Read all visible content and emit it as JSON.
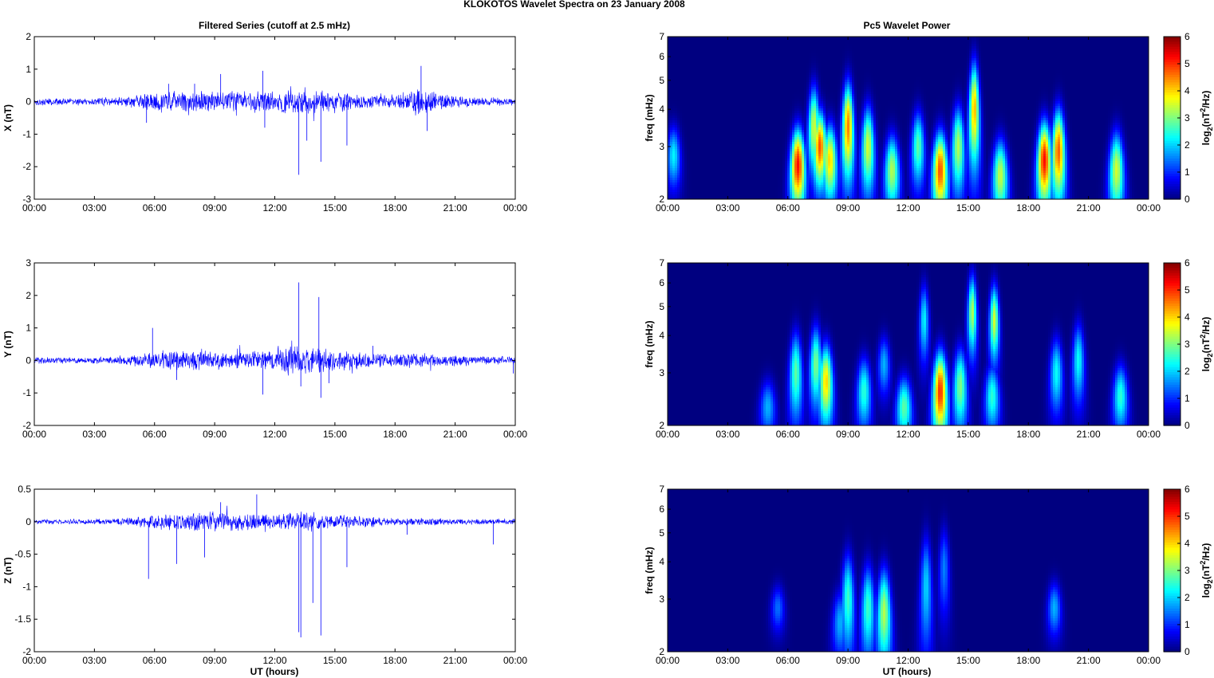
{
  "figure": {
    "title": "KLOKOTOS Wavelet Spectra on 23 January   2008",
    "left_title": "Filtered Series (cutoff at 2.5 mHz)",
    "right_title": "Pc5 Wavelet Power",
    "xlabel": "UT (hours)"
  },
  "time_ticks": [
    "00:00",
    "03:00",
    "06:00",
    "09:00",
    "12:00",
    "15:00",
    "18:00",
    "21:00",
    "00:00"
  ],
  "colors": {
    "series": "#0000ff",
    "background": "#ffffff",
    "axis": "#000000"
  },
  "chart_data": [
    {
      "type": "line",
      "name": "X series",
      "ylabel": "X (nT)",
      "xlim": [
        0,
        24
      ],
      "ylim": [
        -3,
        2
      ],
      "yticks": [
        "2",
        "1",
        "0",
        "-1",
        "-2",
        "-3"
      ],
      "ytick_values": [
        2,
        1,
        0,
        -1,
        -2,
        -3
      ],
      "envelope": {
        "hours": [
          0,
          2,
          4,
          5,
          6,
          7,
          8,
          9,
          10,
          11,
          12,
          13,
          14,
          15,
          16,
          17,
          18,
          19,
          20,
          21,
          22,
          24
        ],
        "amplitude": [
          0.12,
          0.12,
          0.15,
          0.22,
          0.35,
          0.4,
          0.35,
          0.35,
          0.35,
          0.4,
          0.35,
          0.45,
          0.4,
          0.35,
          0.3,
          0.25,
          0.2,
          0.5,
          0.35,
          0.2,
          0.15,
          0.12
        ]
      },
      "spikes": [
        {
          "x": 5.6,
          "y": -0.65
        },
        {
          "x": 6.7,
          "y": 0.55
        },
        {
          "x": 8.0,
          "y": 0.55
        },
        {
          "x": 9.3,
          "y": 0.85
        },
        {
          "x": 11.4,
          "y": 0.95
        },
        {
          "x": 11.5,
          "y": -0.8
        },
        {
          "x": 13.2,
          "y": -2.25
        },
        {
          "x": 13.6,
          "y": -1.2
        },
        {
          "x": 14.3,
          "y": -1.85
        },
        {
          "x": 15.6,
          "y": -1.35
        },
        {
          "x": 19.3,
          "y": 1.1
        },
        {
          "x": 19.6,
          "y": -0.9
        }
      ]
    },
    {
      "type": "line",
      "name": "Y series",
      "ylabel": "Y (nT)",
      "xlim": [
        0,
        24
      ],
      "ylim": [
        -2,
        3
      ],
      "yticks": [
        "3",
        "2",
        "1",
        "0",
        "-1",
        "-2"
      ],
      "ytick_values": [
        3,
        2,
        1,
        0,
        -1,
        -2
      ],
      "envelope": {
        "hours": [
          0,
          2,
          4,
          5,
          6,
          7,
          8,
          9,
          10,
          11,
          12,
          13,
          14,
          15,
          16,
          17,
          18,
          19,
          20,
          21,
          22,
          24
        ],
        "amplitude": [
          0.12,
          0.1,
          0.12,
          0.2,
          0.3,
          0.35,
          0.35,
          0.3,
          0.3,
          0.35,
          0.35,
          0.5,
          0.45,
          0.35,
          0.3,
          0.25,
          0.2,
          0.25,
          0.2,
          0.2,
          0.15,
          0.15
        ]
      },
      "spikes": [
        {
          "x": 5.9,
          "y": 1.0
        },
        {
          "x": 7.1,
          "y": -0.6
        },
        {
          "x": 11.4,
          "y": -1.05
        },
        {
          "x": 13.2,
          "y": 2.4
        },
        {
          "x": 13.3,
          "y": -0.8
        },
        {
          "x": 14.2,
          "y": 1.95
        },
        {
          "x": 14.3,
          "y": -1.15
        },
        {
          "x": 14.7,
          "y": -0.7
        },
        {
          "x": 16.9,
          "y": 0.45
        },
        {
          "x": 23.9,
          "y": -0.4
        }
      ]
    },
    {
      "type": "line",
      "name": "Z series",
      "ylabel": "Z (nT)",
      "xlim": [
        0,
        24
      ],
      "ylim": [
        -2,
        0.5
      ],
      "yticks": [
        "0.5",
        "0",
        "-0.5",
        "-1",
        "-1.5",
        "-2"
      ],
      "ytick_values": [
        0.5,
        0,
        -0.5,
        -1,
        -1.5,
        -2
      ],
      "envelope": {
        "hours": [
          0,
          2,
          4,
          5,
          6,
          7,
          8,
          9,
          10,
          11,
          12,
          13,
          14,
          15,
          16,
          17,
          18,
          19,
          20,
          21,
          22,
          24
        ],
        "amplitude": [
          0.04,
          0.04,
          0.05,
          0.08,
          0.12,
          0.15,
          0.15,
          0.18,
          0.15,
          0.15,
          0.12,
          0.18,
          0.15,
          0.12,
          0.1,
          0.08,
          0.06,
          0.06,
          0.06,
          0.05,
          0.05,
          0.05
        ]
      },
      "spikes": [
        {
          "x": 5.7,
          "y": -0.88
        },
        {
          "x": 7.1,
          "y": -0.65
        },
        {
          "x": 8.5,
          "y": -0.55
        },
        {
          "x": 9.3,
          "y": 0.3
        },
        {
          "x": 11.1,
          "y": 0.42
        },
        {
          "x": 13.2,
          "y": -1.7
        },
        {
          "x": 13.3,
          "y": -1.78
        },
        {
          "x": 13.9,
          "y": -1.25
        },
        {
          "x": 14.3,
          "y": -1.75
        },
        {
          "x": 15.6,
          "y": -0.7
        },
        {
          "x": 18.6,
          "y": -0.2
        },
        {
          "x": 22.9,
          "y": -0.35
        }
      ]
    },
    {
      "type": "heatmap",
      "name": "Pc5 power X",
      "ylabel": "freq (mHz)",
      "colorbar_label": "log2(nT2/Hz)",
      "xlim": [
        0,
        24
      ],
      "ylim": [
        2,
        7
      ],
      "yscale": "log",
      "yticks": [
        "7",
        "6",
        "5",
        "4",
        "3",
        "2"
      ],
      "ytick_values": [
        7,
        6,
        5,
        4,
        3,
        2
      ],
      "clim": [
        0,
        6
      ],
      "cticks": [
        "6",
        "5",
        "4",
        "3",
        "2",
        "1",
        "0"
      ],
      "cbar_values": [
        6,
        5,
        4,
        3,
        2,
        1,
        0
      ],
      "blobs": [
        {
          "t": 0.3,
          "f": 2.8,
          "amp": 2.2,
          "sf": 0.45
        },
        {
          "t": 6.5,
          "f": 2.6,
          "amp": 5.2,
          "sf": 0.55
        },
        {
          "t": 7.3,
          "f": 3.5,
          "amp": 3.5,
          "sf": 0.8
        },
        {
          "t": 7.6,
          "f": 3.0,
          "amp": 4.8,
          "sf": 0.6
        },
        {
          "t": 8.1,
          "f": 2.7,
          "amp": 4.0,
          "sf": 0.55
        },
        {
          "t": 9.0,
          "f": 3.5,
          "amp": 4.5,
          "sf": 0.9
        },
        {
          "t": 10.0,
          "f": 3.0,
          "amp": 3.5,
          "sf": 0.7
        },
        {
          "t": 11.2,
          "f": 2.5,
          "amp": 3.3,
          "sf": 0.5
        },
        {
          "t": 12.5,
          "f": 3.0,
          "amp": 2.8,
          "sf": 0.6
        },
        {
          "t": 13.6,
          "f": 2.5,
          "amp": 4.8,
          "sf": 0.55
        },
        {
          "t": 14.5,
          "f": 3.0,
          "amp": 3.3,
          "sf": 0.7
        },
        {
          "t": 15.3,
          "f": 4.0,
          "amp": 4.2,
          "sf": 1.1
        },
        {
          "t": 16.6,
          "f": 2.4,
          "amp": 3.4,
          "sf": 0.5
        },
        {
          "t": 18.8,
          "f": 2.7,
          "amp": 5.2,
          "sf": 0.6
        },
        {
          "t": 19.5,
          "f": 2.9,
          "amp": 4.7,
          "sf": 0.7
        },
        {
          "t": 22.4,
          "f": 2.5,
          "amp": 3.5,
          "sf": 0.55
        }
      ]
    },
    {
      "type": "heatmap",
      "name": "Pc5 power Y",
      "ylabel": "freq (mHz)",
      "colorbar_label": "log2(nT2/Hz)",
      "xlim": [
        0,
        24
      ],
      "ylim": [
        2,
        7
      ],
      "yscale": "log",
      "yticks": [
        "7",
        "6",
        "5",
        "4",
        "3",
        "2"
      ],
      "ytick_values": [
        7,
        6,
        5,
        4,
        3,
        2
      ],
      "clim": [
        0,
        6
      ],
      "cticks": [
        "6",
        "5",
        "4",
        "3",
        "2",
        "1",
        "0"
      ],
      "cbar_values": [
        6,
        5,
        4,
        3,
        2,
        1,
        0
      ],
      "blobs": [
        {
          "t": 5.0,
          "f": 2.3,
          "amp": 1.8,
          "sf": 0.35
        },
        {
          "t": 6.4,
          "f": 3.0,
          "amp": 2.8,
          "sf": 0.7
        },
        {
          "t": 7.4,
          "f": 3.2,
          "amp": 3.0,
          "sf": 0.7
        },
        {
          "t": 7.9,
          "f": 2.8,
          "amp": 4.0,
          "sf": 0.6
        },
        {
          "t": 9.8,
          "f": 2.6,
          "amp": 2.5,
          "sf": 0.5
        },
        {
          "t": 10.8,
          "f": 3.2,
          "amp": 1.8,
          "sf": 0.5
        },
        {
          "t": 11.8,
          "f": 2.3,
          "amp": 2.8,
          "sf": 0.4
        },
        {
          "t": 12.8,
          "f": 4.5,
          "amp": 2.2,
          "sf": 0.9
        },
        {
          "t": 13.6,
          "f": 2.6,
          "amp": 5.0,
          "sf": 0.6
        },
        {
          "t": 14.6,
          "f": 2.7,
          "amp": 3.0,
          "sf": 0.6
        },
        {
          "t": 15.2,
          "f": 4.8,
          "amp": 3.3,
          "sf": 1.0
        },
        {
          "t": 16.3,
          "f": 4.5,
          "amp": 3.5,
          "sf": 0.9
        },
        {
          "t": 16.2,
          "f": 2.5,
          "amp": 2.5,
          "sf": 0.45
        },
        {
          "t": 19.4,
          "f": 3.0,
          "amp": 2.3,
          "sf": 0.6
        },
        {
          "t": 20.5,
          "f": 3.3,
          "amp": 2.3,
          "sf": 0.7
        },
        {
          "t": 22.6,
          "f": 2.5,
          "amp": 2.5,
          "sf": 0.45
        }
      ]
    },
    {
      "type": "heatmap",
      "name": "Pc5 power Z",
      "ylabel": "freq (mHz)",
      "colorbar_label": "log2(nT2/Hz)",
      "xlim": [
        0,
        24
      ],
      "ylim": [
        2,
        7
      ],
      "yscale": "log",
      "yticks": [
        "7",
        "6",
        "5",
        "4",
        "3",
        "2"
      ],
      "ytick_values": [
        7,
        6,
        5,
        4,
        3,
        2
      ],
      "clim": [
        0,
        6
      ],
      "cticks": [
        "6",
        "5",
        "4",
        "3",
        "2",
        "1",
        "0"
      ],
      "cbar_values": [
        6,
        5,
        4,
        3,
        2,
        1,
        0
      ],
      "blobs": [
        {
          "t": 5.5,
          "f": 2.8,
          "amp": 1.4,
          "sf": 0.35
        },
        {
          "t": 8.6,
          "f": 2.5,
          "amp": 1.8,
          "sf": 0.45
        },
        {
          "t": 9.0,
          "f": 3.0,
          "amp": 2.6,
          "sf": 0.8
        },
        {
          "t": 10.0,
          "f": 2.8,
          "amp": 2.6,
          "sf": 0.7
        },
        {
          "t": 10.8,
          "f": 2.7,
          "amp": 3.3,
          "sf": 0.7
        },
        {
          "t": 12.9,
          "f": 3.3,
          "amp": 2.0,
          "sf": 1.0
        },
        {
          "t": 13.8,
          "f": 3.8,
          "amp": 1.5,
          "sf": 0.9
        },
        {
          "t": 19.3,
          "f": 2.8,
          "amp": 1.8,
          "sf": 0.4
        }
      ]
    }
  ]
}
